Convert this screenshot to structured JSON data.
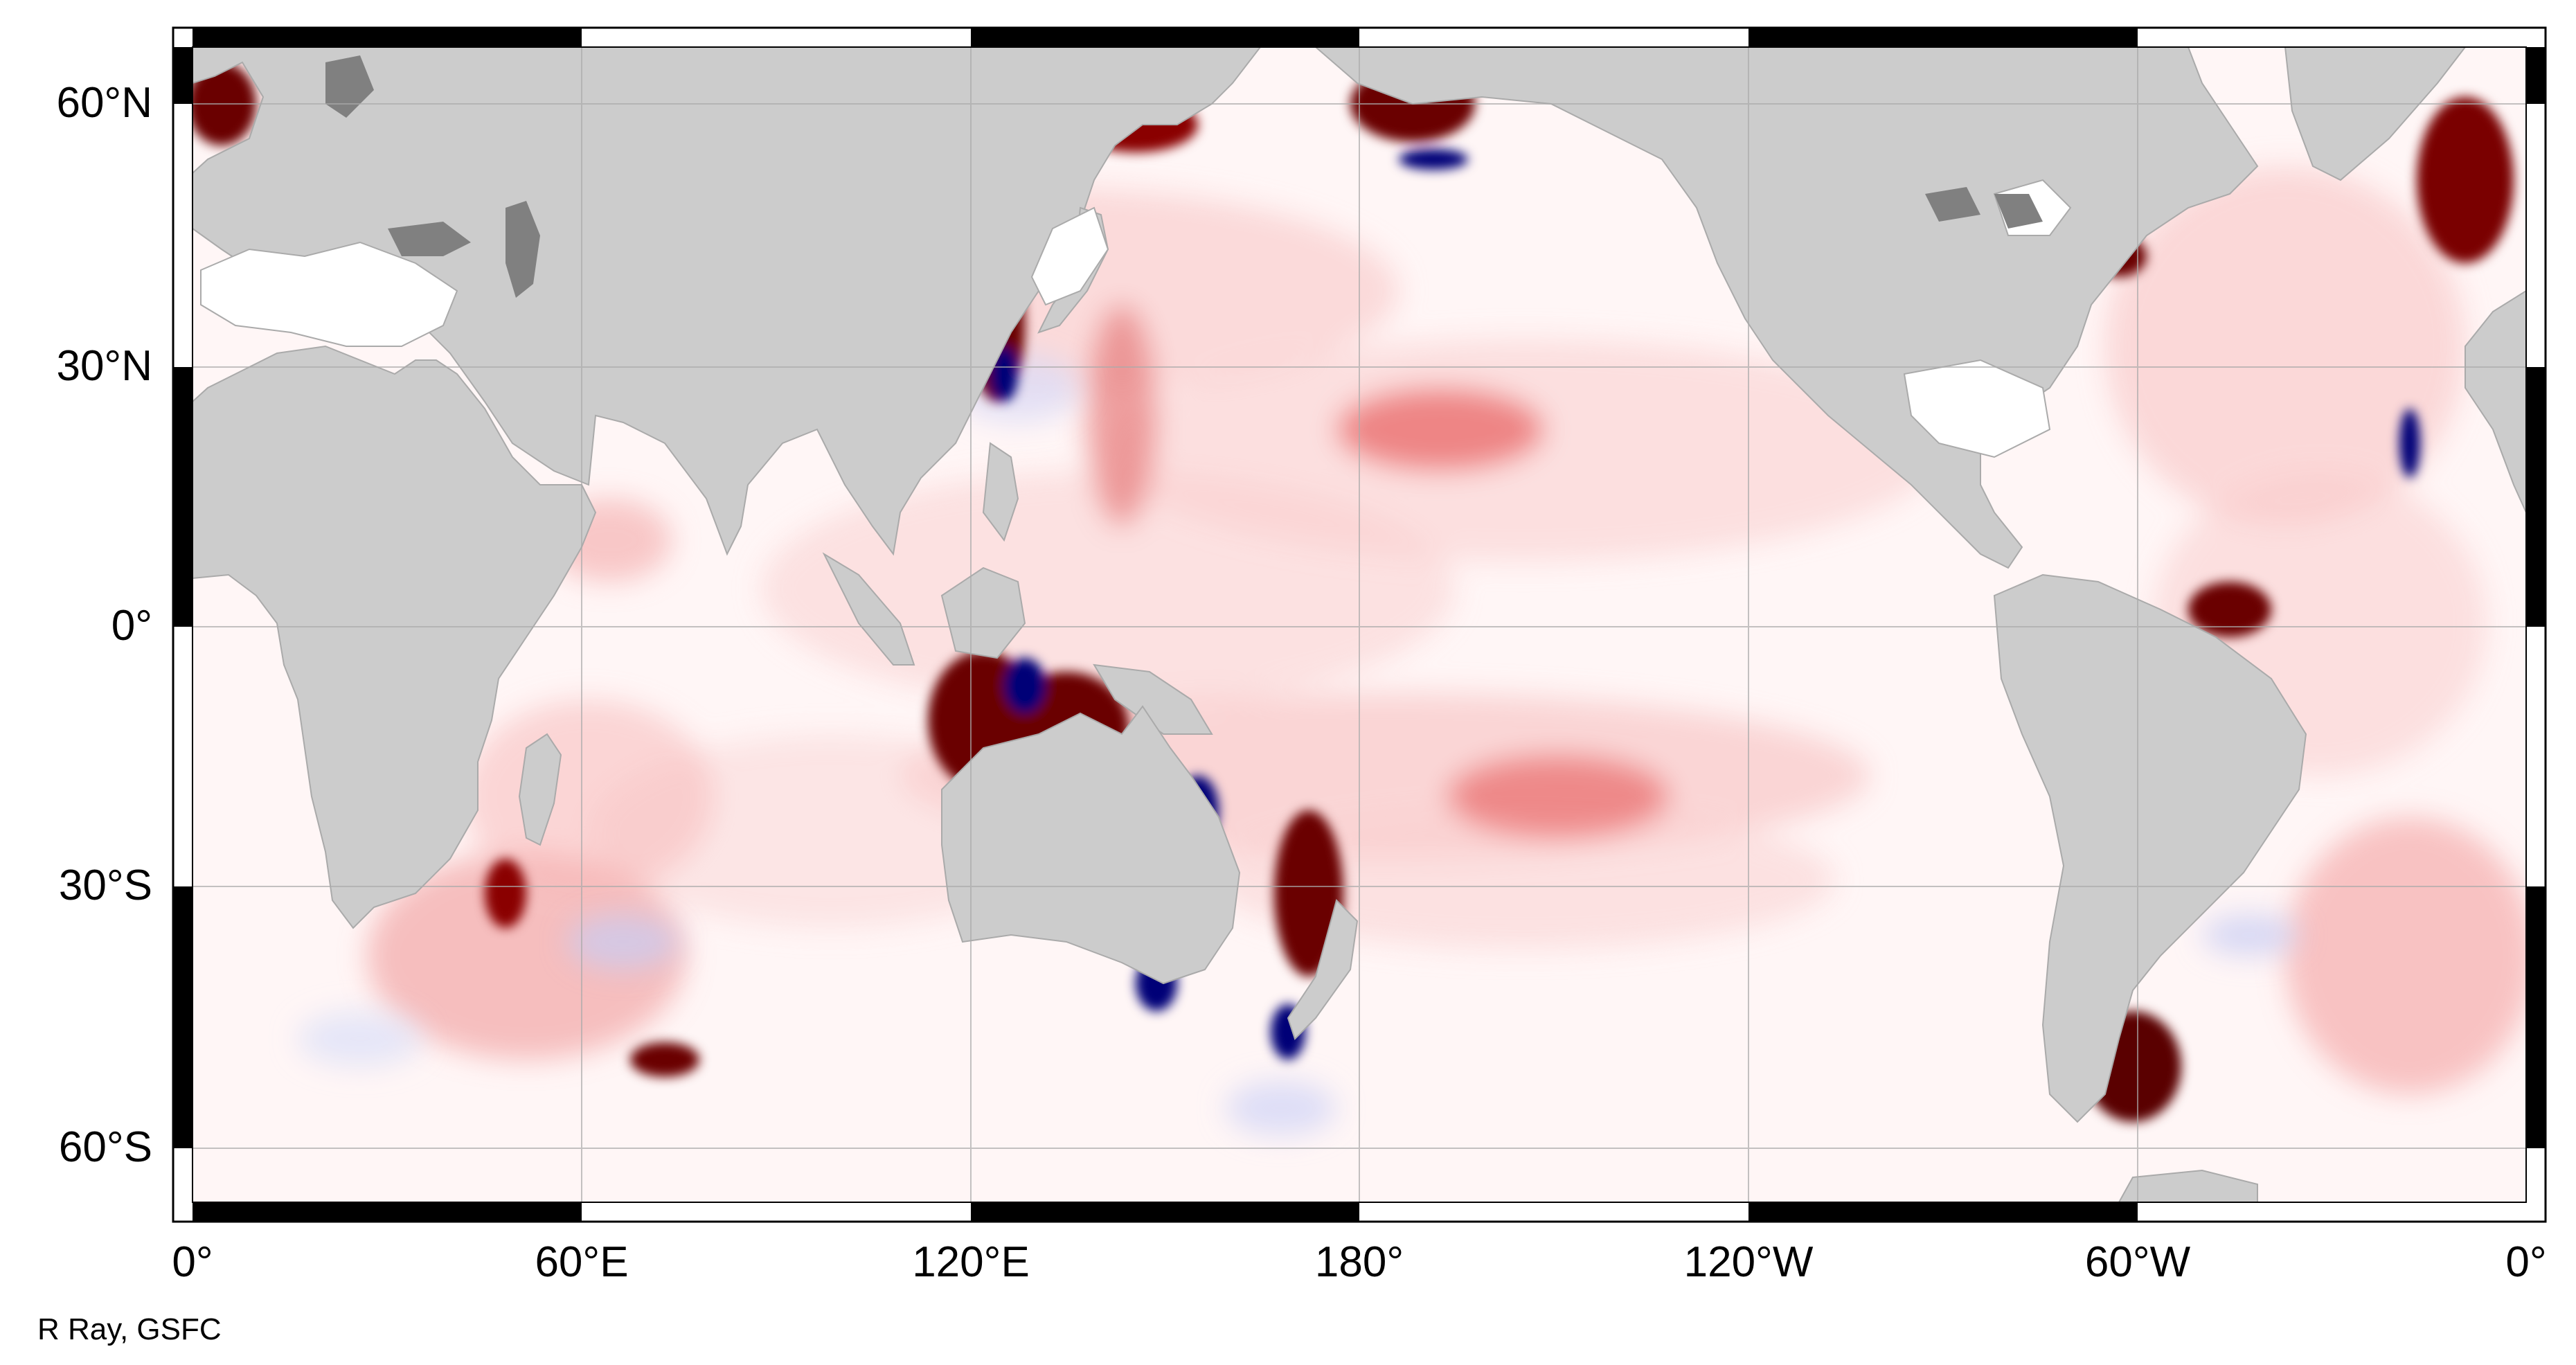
{
  "map": {
    "projection": "equirectangular",
    "lon_range_deg_east": [
      0,
      360
    ],
    "lat_range_deg": [
      -67,
      67
    ],
    "land_color": "#cccccc",
    "inland_water_color": "#808080",
    "frame_color": "#000000",
    "graticule_color": "#aaaaaa",
    "palette": {
      "positive_strong": "#5a0000",
      "positive": "#dd1111",
      "neutral": "#ffffff",
      "negative": "#2233aa",
      "negative_strong": "#000066"
    }
  },
  "axes": {
    "lat_ticks": [
      {
        "value": 60,
        "label": "60°N"
      },
      {
        "value": 30,
        "label": "30°N"
      },
      {
        "value": 0,
        "label": "0°"
      },
      {
        "value": -30,
        "label": "30°S"
      },
      {
        "value": -60,
        "label": "60°S"
      }
    ],
    "lon_ticks": [
      {
        "value": 0,
        "label": "0°"
      },
      {
        "value": 60,
        "label": "60°E"
      },
      {
        "value": 120,
        "label": "120°E"
      },
      {
        "value": 180,
        "label": "180°"
      },
      {
        "value": 240,
        "label": "120°W"
      },
      {
        "value": 300,
        "label": "60°W"
      },
      {
        "value": 360,
        "label": "0°"
      }
    ]
  },
  "credit": "R Ray, GSFC"
}
